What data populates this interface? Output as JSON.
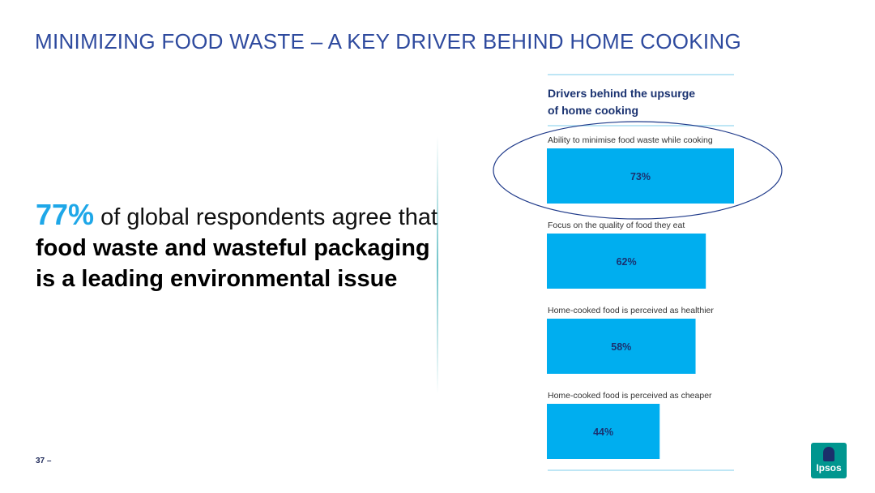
{
  "slide": {
    "title": "MINIMIZING FOOD WASTE – A KEY DRIVER BEHIND HOME COOKING",
    "page_number": "37 –"
  },
  "statement": {
    "percent": "77%",
    "part1": " of global respondents agree that ",
    "bold": "food waste and wasteful packaging is a leading environmental issue"
  },
  "logo": {
    "text": "Ipsos"
  },
  "colors": {
    "title": "#2E4A9E",
    "accent": "#1EA7E8",
    "bar": "#00AEEF",
    "bar_label": "#1A3270",
    "chart_title": "#1A3270",
    "rule": "#A9DDF2",
    "highlight_ellipse": "#1F3A8A",
    "logo": "#00968F"
  },
  "chart_data": {
    "type": "bar",
    "orientation": "horizontal",
    "title": "Drivers behind the upsurge of home cooking",
    "title_lines": [
      "Drivers behind the upsurge",
      "of home cooking"
    ],
    "categories": [
      "Ability to minimise food waste while cooking",
      "Focus on the quality of food they eat",
      "Home-cooked food is perceived as healthier",
      "Home-cooked food is perceived as cheaper"
    ],
    "values": [
      73,
      62,
      58,
      44
    ],
    "value_labels": [
      "73%",
      "62%",
      "58%",
      "44%"
    ],
    "xlim": [
      0,
      73
    ],
    "highlight_index": 0,
    "grid": false,
    "legend": "none"
  }
}
